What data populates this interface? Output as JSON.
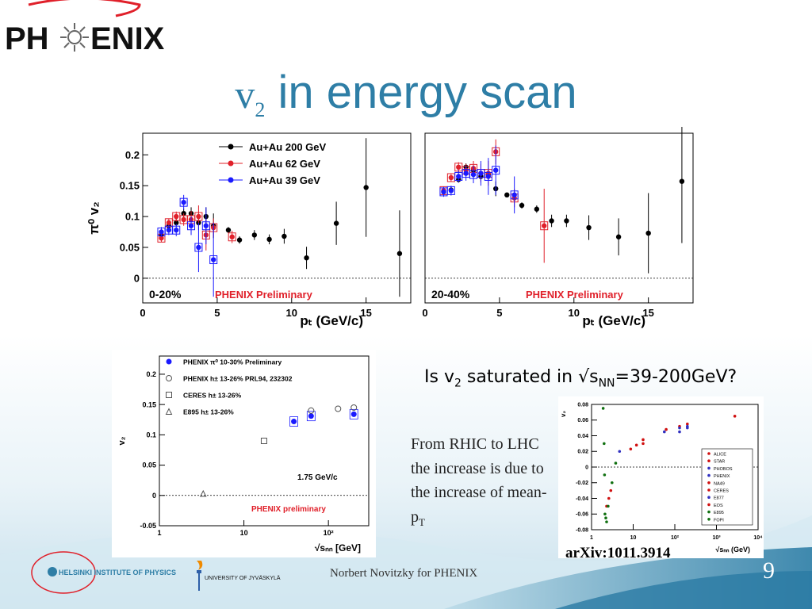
{
  "slide": {
    "logo_text_left": "PH",
    "logo_text_right": "ENIX",
    "title_symbol": "v",
    "title_subscript": "2",
    "title_text": "in energy scan",
    "question_prefix": "Is v",
    "question_sub1": "2",
    "question_mid": " saturated in √s",
    "question_sub2": "NN",
    "question_suffix": "=39-200GeV?",
    "explain_main": "From RHIC to LHC the increase is due to the increase of mean-p",
    "explain_sub": "T",
    "arxiv": "arXiv:1011.3914",
    "footer_hip": "HELSINKI INSTITUTE OF PHYSICS",
    "footer_jyu": "UNIVERSITY OF JYVÄSKYLÄ",
    "footer_author": "Norbert Novitzky for PHENIX",
    "page_number": "9",
    "colors": {
      "title": "#2e7ea6",
      "logo_red": "#e0202a",
      "series_200": "#000000",
      "series_62": "#e0202a",
      "series_39": "#1a1aff"
    }
  },
  "chart_data": [
    {
      "id": "pt-0-20",
      "type": "scatter",
      "ylabel": "π⁰ v₂",
      "xlabel": "pₜ (GeV/c)",
      "xlim": [
        0,
        18
      ],
      "ylim": [
        -0.04,
        0.235
      ],
      "xticks": [
        0,
        5,
        10,
        15
      ],
      "yticks": [
        0,
        0.05,
        0.1,
        0.15,
        0.2
      ],
      "ytick_labels": [
        "0",
        "0.05",
        "0.1",
        "0.15",
        "0.2"
      ],
      "centrality": "0-20%",
      "preliminary": "PHENIX Preliminary",
      "legend": [
        "Au+Au 200 GeV",
        "Au+Au 62 GeV",
        "Au+Au 39 GeV"
      ],
      "dashed_zero": true,
      "series": [
        {
          "name": "Au+Au 200 GeV",
          "color": "#000000",
          "points": [
            [
              1.25,
              0.07,
              0.006
            ],
            [
              1.75,
              0.085,
              0.006
            ],
            [
              2.25,
              0.09,
              0.006
            ],
            [
              2.75,
              0.105,
              0.008
            ],
            [
              3.25,
              0.105,
              0.01
            ],
            [
              3.75,
              0.09,
              0.012
            ],
            [
              4.25,
              0.1,
              0.015
            ],
            [
              4.75,
              0.085,
              0.02
            ],
            [
              5.75,
              0.078,
              0.005
            ],
            [
              6.5,
              0.062,
              0.006
            ],
            [
              7.5,
              0.07,
              0.008
            ],
            [
              8.5,
              0.063,
              0.008
            ],
            [
              9.5,
              0.068,
              0.012
            ],
            [
              11,
              0.033,
              0.018
            ],
            [
              13,
              0.089,
              0.035
            ],
            [
              15,
              0.147,
              0.08
            ],
            [
              17.25,
              0.04,
              0.07
            ]
          ]
        },
        {
          "name": "Au+Au 62 GeV",
          "color": "#e0202a",
          "points": [
            [
              1.25,
              0.065,
              0.006
            ],
            [
              1.75,
              0.09,
              0.007
            ],
            [
              2.25,
              0.1,
              0.008
            ],
            [
              2.75,
              0.095,
              0.01
            ],
            [
              3.25,
              0.095,
              0.014
            ],
            [
              3.75,
              0.1,
              0.018
            ],
            [
              4.25,
              0.07,
              0.025
            ],
            [
              4.75,
              0.082,
              0.015
            ],
            [
              6,
              0.067,
              0.01
            ]
          ]
        },
        {
          "name": "Au+Au 39 GeV",
          "color": "#1a1aff",
          "points": [
            [
              1.25,
              0.075,
              0.008
            ],
            [
              1.75,
              0.078,
              0.008
            ],
            [
              2.25,
              0.078,
              0.01
            ],
            [
              2.75,
              0.123,
              0.012
            ],
            [
              3.25,
              0.085,
              0.015
            ],
            [
              3.75,
              0.05,
              0.04
            ],
            [
              4.25,
              0.085,
              0.03
            ],
            [
              4.75,
              0.03,
              0.06
            ]
          ]
        }
      ]
    },
    {
      "id": "pt-20-40",
      "type": "scatter",
      "xlabel": "pₜ (GeV/c)",
      "xlim": [
        0,
        18
      ],
      "ylim": [
        -0.04,
        0.235
      ],
      "xticks": [
        0,
        5,
        10,
        15
      ],
      "centrality": "20-40%",
      "preliminary": "PHENIX Preliminary",
      "dashed_zero": true,
      "series": [
        {
          "name": "Au+Au 200 GeV",
          "color": "#000000",
          "points": [
            [
              1.25,
              0.14,
              0.005
            ],
            [
              1.75,
              0.143,
              0.005
            ],
            [
              2.25,
              0.16,
              0.005
            ],
            [
              2.75,
              0.18,
              0.006
            ],
            [
              3.25,
              0.175,
              0.007
            ],
            [
              3.75,
              0.165,
              0.008
            ],
            [
              4.25,
              0.168,
              0.01
            ],
            [
              4.75,
              0.145,
              0.012
            ],
            [
              5.5,
              0.135,
              0.004
            ],
            [
              6.5,
              0.118,
              0.005
            ],
            [
              7.5,
              0.112,
              0.006
            ],
            [
              8.5,
              0.093,
              0.01
            ],
            [
              9.5,
              0.093,
              0.01
            ],
            [
              11,
              0.082,
              0.02
            ],
            [
              13,
              0.067,
              0.03
            ],
            [
              15,
              0.073,
              0.065
            ],
            [
              17.25,
              0.157,
              0.1
            ]
          ]
        },
        {
          "name": "Au+Au 62 GeV",
          "color": "#e0202a",
          "points": [
            [
              1.25,
              0.142,
              0.006
            ],
            [
              1.75,
              0.163,
              0.007
            ],
            [
              2.25,
              0.18,
              0.008
            ],
            [
              2.75,
              0.175,
              0.01
            ],
            [
              3.25,
              0.178,
              0.012
            ],
            [
              3.75,
              0.17,
              0.015
            ],
            [
              4.25,
              0.17,
              0.02
            ],
            [
              4.75,
              0.205,
              0.02
            ],
            [
              6,
              0.13,
              0.015
            ],
            [
              8,
              0.085,
              0.06
            ]
          ]
        },
        {
          "name": "Au+Au 39 GeV",
          "color": "#1a1aff",
          "points": [
            [
              1.25,
              0.14,
              0.008
            ],
            [
              1.75,
              0.142,
              0.008
            ],
            [
              2.25,
              0.165,
              0.01
            ],
            [
              2.75,
              0.17,
              0.012
            ],
            [
              3.25,
              0.168,
              0.014
            ],
            [
              3.75,
              0.17,
              0.02
            ],
            [
              4.25,
              0.165,
              0.03
            ],
            [
              4.75,
              0.175,
              0.04
            ],
            [
              6,
              0.135,
              0.03
            ]
          ]
        }
      ]
    },
    {
      "id": "energy-phenix",
      "type": "scatter",
      "ylabel": "v₂",
      "xlabel": "√sₙₙ [GeV]",
      "xscale": "log",
      "xlim": [
        1,
        300
      ],
      "ylim": [
        -0.05,
        0.23
      ],
      "xticks": [
        1,
        10,
        100
      ],
      "xtick_labels": [
        "1",
        "10",
        "10²"
      ],
      "yticks": [
        -0.05,
        0,
        0.05,
        0.1,
        0.15,
        0.2
      ],
      "ytick_labels": [
        "-0.05",
        "0",
        "0.05",
        "0.1",
        "0.15",
        "0.2"
      ],
      "annotation": "1.75 GeV/c",
      "preliminary": "PHENIX preliminary",
      "legend": [
        "PHENIX π⁰ 10-30% Preliminary",
        "PHENIX h± 13-26% PRL94, 232302",
        "CERES h±  13-26%",
        "E895 h±     13-26%"
      ],
      "dashed_zero": true,
      "series": [
        {
          "name": "PHENIX π⁰ 10-30% Preliminary",
          "marker": "filled-circle",
          "color": "#1a1aff",
          "points": [
            [
              39,
              0.122
            ],
            [
              62.4,
              0.131
            ],
            [
              200,
              0.134
            ]
          ]
        },
        {
          "name": "PHENIX h± 13-26% PRL94, 232302",
          "marker": "open-circle",
          "color": "#555555",
          "points": [
            [
              62.4,
              0.14
            ],
            [
              130,
              0.143
            ],
            [
              200,
              0.145
            ]
          ]
        },
        {
          "name": "CERES h±  13-26%",
          "marker": "open-square",
          "color": "#555555",
          "points": [
            [
              17.3,
              0.09
            ]
          ]
        },
        {
          "name": "E895 h±     13-26%",
          "marker": "open-triangle",
          "color": "#555555",
          "points": [
            [
              3.3,
              0.003
            ]
          ]
        }
      ]
    },
    {
      "id": "energy-world",
      "type": "scatter",
      "ylabel": "v₂",
      "xlabel": "√sₙₙ (GeV)",
      "xscale": "log",
      "xlim": [
        1,
        10000
      ],
      "ylim": [
        -0.08,
        0.08
      ],
      "xticks": [
        1,
        10,
        100,
        1000,
        10000
      ],
      "xtick_labels": [
        "1",
        "10",
        "10²",
        "10³",
        "10⁴"
      ],
      "yticks": [
        -0.08,
        -0.06,
        -0.04,
        -0.02,
        0,
        0.02,
        0.04,
        0.06,
        0.08
      ],
      "ytick_labels": [
        "-0.08",
        "-0.06",
        "-0.04",
        "-0.02",
        "0",
        "0.02",
        "0.04",
        "0.06",
        "0.08"
      ],
      "legend": [
        "ALICE",
        "STAR",
        "PHOBOS",
        "PHENIX",
        "NA49",
        "CERES",
        "E877",
        "EOS",
        "E895",
        "FOPI"
      ],
      "dashed_zero": true,
      "series": [
        {
          "name": "ALICE",
          "color": "#d01010",
          "points": [
            [
              2760,
              0.065
            ]
          ]
        },
        {
          "name": "STAR",
          "color": "#d01010",
          "points": [
            [
              62,
              0.048
            ],
            [
              130,
              0.052
            ],
            [
              200,
              0.055
            ]
          ]
        },
        {
          "name": "PHOBOS",
          "color": "#3030c0",
          "points": [
            [
              56,
              0.045
            ],
            [
              130,
              0.05
            ],
            [
              200,
              0.052
            ]
          ]
        },
        {
          "name": "PHENIX",
          "color": "#3030c0",
          "points": [
            [
              130,
              0.045
            ],
            [
              200,
              0.05
            ]
          ]
        },
        {
          "name": "NA49",
          "color": "#d01010",
          "points": [
            [
              8.7,
              0.023
            ],
            [
              17.3,
              0.03
            ]
          ]
        },
        {
          "name": "CERES",
          "color": "#d01010",
          "points": [
            [
              17.3,
              0.035
            ],
            [
              12,
              0.028
            ]
          ]
        },
        {
          "name": "E877",
          "color": "#3030c0",
          "points": [
            [
              4.7,
              0.02
            ]
          ]
        },
        {
          "name": "EOS",
          "color": "#d01010",
          "points": [
            [
              2.3,
              -0.05
            ],
            [
              2.6,
              -0.04
            ],
            [
              2.9,
              -0.03
            ]
          ]
        },
        {
          "name": "E895",
          "color": "#107010",
          "points": [
            [
              2.1,
              -0.06
            ],
            [
              2.5,
              -0.05
            ],
            [
              3.1,
              -0.02
            ],
            [
              3.8,
              0.005
            ]
          ]
        },
        {
          "name": "FOPI",
          "color": "#107010",
          "points": [
            [
              1.9,
              0.075
            ],
            [
              2.0,
              0.03
            ],
            [
              2.05,
              -0.01
            ],
            [
              2.2,
              -0.065
            ],
            [
              2.3,
              -0.07
            ]
          ]
        }
      ]
    }
  ]
}
